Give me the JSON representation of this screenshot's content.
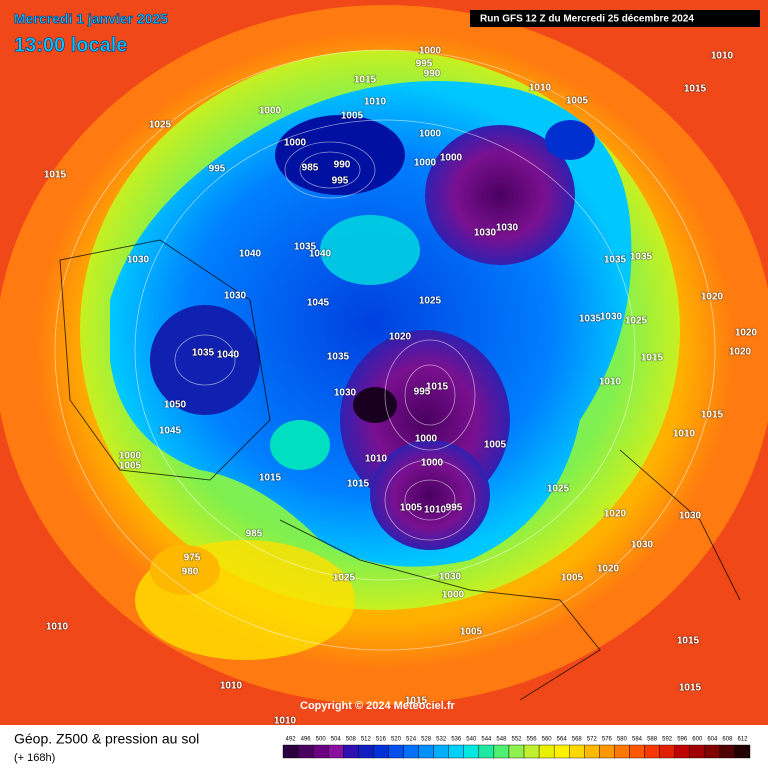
{
  "header": {
    "date": "Mercredi 1 janvier 2025",
    "time": "13:00 locale",
    "run": "Run GFS 12 Z du Mercredi 25 décembre 2024"
  },
  "footer": {
    "title": "Géop. Z500 & pression au sol",
    "lead": "(+ 168h)",
    "copyright": "Copyright © 2024 Meteociel.fr"
  },
  "scale": {
    "labels": [
      492,
      496,
      500,
      504,
      508,
      512,
      516,
      520,
      524,
      528,
      532,
      536,
      540,
      544,
      548,
      552,
      556,
      560,
      564,
      568,
      572,
      576,
      580,
      584,
      588,
      592,
      596,
      600,
      604,
      608,
      612
    ],
    "colors": [
      "#2a0040",
      "#4a0060",
      "#6a0080",
      "#8a10a0",
      "#3010b0",
      "#1020c0",
      "#0030d8",
      "#0050f0",
      "#0070ff",
      "#0090ff",
      "#00b0ff",
      "#00d0ff",
      "#00e8e0",
      "#20e8a0",
      "#50f070",
      "#90f050",
      "#c0f030",
      "#e8f000",
      "#fff000",
      "#ffd800",
      "#ffb800",
      "#ff9800",
      "#ff7800",
      "#ff5800",
      "#f83800",
      "#e02000",
      "#c00000",
      "#a00000",
      "#800000",
      "#500000",
      "#200000"
    ]
  },
  "isobar_labels": [
    1010,
    1015,
    1025,
    1015,
    995,
    1015,
    1000,
    995,
    990,
    1010,
    1005,
    1000,
    1000,
    985,
    990,
    995,
    1000,
    1000,
    1000,
    1010,
    1005,
    1030,
    1030,
    1035,
    1035,
    1040,
    1040,
    1035,
    1030,
    1030,
    1045,
    1025,
    1020,
    1035,
    1030,
    995,
    1015,
    1000,
    1005,
    1010,
    1015,
    1000,
    1005,
    1010,
    995,
    1015,
    985,
    980,
    975,
    1025,
    1030,
    1000,
    1005,
    1005,
    1020,
    1025,
    1030,
    1030,
    1020,
    1015,
    1015,
    1010,
    1015,
    1010,
    1010,
    1020,
    1020,
    1020,
    1015,
    1010,
    1015,
    1010,
    1035,
    1030,
    1025,
    1035,
    1040,
    1050,
    1045,
    1000,
    1005
  ]
}
